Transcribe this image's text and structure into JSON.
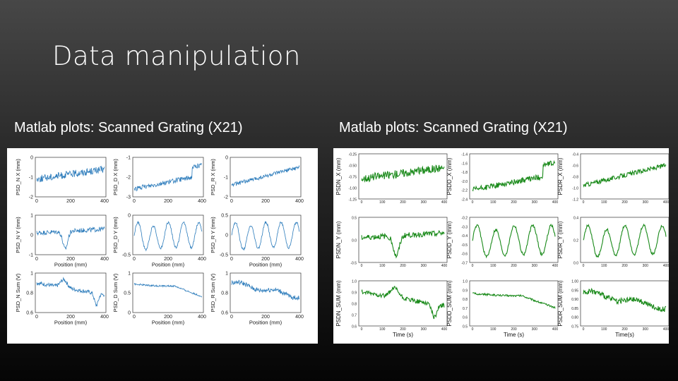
{
  "slide": {
    "title": "Data manipulation",
    "left_subtitle": "Matlab plots: Scanned Grating (X21)",
    "right_subtitle": "Matlab plots: Scanned Grating (X21)"
  },
  "colors": {
    "left_line": "#2b7bbb",
    "right_line": "#1a8a1a"
  },
  "chart_data": [
    {
      "type": "line",
      "panel": "left",
      "grid": "3x3",
      "xlabels": [
        "",
        "",
        "",
        "Position (mm)",
        "Position (mm)",
        "Position (mm)",
        "Position (mm)",
        "Position (mm)",
        "Position (mm)"
      ],
      "subplots": [
        {
          "ylabel": "PSD_N X (mm)",
          "xticks": [
            "0",
            "200",
            "400"
          ],
          "yticks": [
            "0",
            "-1",
            "-2"
          ],
          "ylim": [
            -2,
            0
          ],
          "trend": "flat_up",
          "base": -0.8
        },
        {
          "ylabel": "PSD_D X (mm)",
          "xticks": [
            "0",
            "200",
            "400"
          ],
          "yticks": [
            "-1",
            "-2",
            "-3"
          ],
          "ylim": [
            -3,
            -1
          ],
          "trend": "ramp",
          "base": -2.1
        },
        {
          "ylabel": "PSD_R X (mm)",
          "xticks": [
            "0",
            "200",
            "400"
          ],
          "yticks": [
            "0",
            "-1",
            "-2"
          ],
          "ylim": [
            -2,
            0
          ],
          "trend": "ramp_slow",
          "base": -1.2
        },
        {
          "ylabel": "PSD_N Y (mm)",
          "xticks": [
            "0",
            "200",
            "400"
          ],
          "yticks": [
            "1",
            "0",
            "-1"
          ],
          "ylim": [
            -1,
            1
          ],
          "trend": "dip",
          "base": 0.1
        },
        {
          "ylabel": "PSD_D Y (mm)",
          "xticks": [
            "0",
            "200",
            "400"
          ],
          "yticks": [
            "0",
            "-0.5"
          ],
          "ylim": [
            -0.8,
            0.2
          ],
          "trend": "wave",
          "base": -0.2
        },
        {
          "ylabel": "PSD_R Y (mm)",
          "xticks": [
            "0",
            "200",
            "400"
          ],
          "yticks": [
            "0.5",
            "0",
            "-0.5"
          ],
          "ylim": [
            -0.5,
            0.5
          ],
          "trend": "wave",
          "base": 0.1
        },
        {
          "ylabel": "PSD_N Sum (V)",
          "xticks": [
            "0",
            "200",
            "400"
          ],
          "yticks": [
            "1",
            "0.8",
            "0.6"
          ],
          "ylim": [
            0.5,
            1
          ],
          "trend": "sum",
          "base": 0.8
        },
        {
          "ylabel": "PSD_D Sum (V)",
          "xticks": [
            "0",
            "200",
            "400"
          ],
          "yticks": [
            "1",
            "0.5",
            "0"
          ],
          "ylim": [
            0,
            1
          ],
          "trend": "sum_smooth",
          "base": 0.8
        },
        {
          "ylabel": "PSD_R Sum (V)",
          "xticks": [
            "0",
            "200",
            "400"
          ],
          "yticks": [
            "1",
            "0.8",
            "0.6"
          ],
          "ylim": [
            0.6,
            1
          ],
          "trend": "sum_r",
          "base": 0.9
        }
      ]
    },
    {
      "type": "line",
      "panel": "right",
      "grid": "3x3",
      "xlabels": [
        "",
        "",
        "",
        "",
        "",
        "",
        "Time (s)",
        "Time (s)",
        "Time(s)"
      ],
      "subplots": [
        {
          "ylabel": "PSDN_X (mm)",
          "xticks": [
            "0",
            "100",
            "200",
            "300",
            "400"
          ],
          "yticks": [
            "-0.25",
            "-0.50",
            "-0.75",
            "-1.00",
            "-1.25"
          ],
          "ylim": [
            -1.3,
            -0.2
          ],
          "trend": "flat_up",
          "base": -0.8
        },
        {
          "ylabel": "PSDD_X (mm)",
          "xticks": [
            "0",
            "100",
            "200",
            "300",
            "400"
          ],
          "yticks": [
            "-1.4",
            "-1.6",
            "-1.8",
            "-2.0",
            "-2.2",
            "-2.4"
          ],
          "ylim": [
            -2.5,
            -1.3
          ],
          "trend": "ramp",
          "base": -2.0
        },
        {
          "ylabel": "PSDR_X (mm)",
          "xticks": [
            "0",
            "100",
            "200",
            "300",
            "400"
          ],
          "yticks": [
            "-0.4",
            "-0.6",
            "-0.8",
            "-1.0",
            "-1.2"
          ],
          "ylim": [
            -1.3,
            -0.3
          ],
          "trend": "ramp_slow",
          "base": -0.9
        },
        {
          "ylabel": "PSDN_Y (mm)",
          "xticks": [
            "0",
            "100",
            "200",
            "300",
            "400"
          ],
          "yticks": [
            "0.5",
            "0.0",
            "-0.5"
          ],
          "ylim": [
            -0.9,
            0.8
          ],
          "trend": "dip",
          "base": 0.0
        },
        {
          "ylabel": "PSDD_Y (mm)",
          "xticks": [
            "0",
            "100",
            "200",
            "300",
            "400"
          ],
          "yticks": [
            "-0.2",
            "-0.3",
            "-0.4",
            "-0.5",
            "-0.6",
            "-0.7"
          ],
          "ylim": [
            -0.75,
            -0.15
          ],
          "trend": "wave",
          "base": -0.4
        },
        {
          "ylabel": "PSDR_Y (mm)",
          "xticks": [
            "0",
            "100",
            "200",
            "300",
            "400"
          ],
          "yticks": [
            "0.4",
            "0.2",
            "0.0"
          ],
          "ylim": [
            -0.1,
            0.5
          ],
          "trend": "wave",
          "base": 0.25
        },
        {
          "ylabel": "PSDN_SUM (mm)",
          "xticks": [
            "0",
            "100",
            "200",
            "300",
            "400"
          ],
          "yticks": [
            "1.0",
            "0.9",
            "0.8",
            "0.7",
            "0.6"
          ],
          "ylim": [
            0.55,
            1.05
          ],
          "trend": "sum",
          "base": 0.8
        },
        {
          "ylabel": "PSDD_SUM (mm)",
          "xticks": [
            "0",
            "100",
            "200",
            "300",
            "400"
          ],
          "yticks": [
            "1.0",
            "0.9",
            "0.8",
            "0.7",
            "0.6",
            "0.5"
          ],
          "ylim": [
            0.45,
            1.05
          ],
          "trend": "sum_smooth",
          "base": 0.8
        },
        {
          "ylabel": "PSDR_SUM (mm)",
          "xticks": [
            "0",
            "100",
            "200",
            "300",
            "400"
          ],
          "yticks": [
            "1.00",
            "0.95",
            "0.90",
            "0.85",
            "0.80",
            "0.75"
          ],
          "ylim": [
            0.72,
            1.02
          ],
          "trend": "sum_r",
          "base": 0.88
        }
      ]
    }
  ]
}
